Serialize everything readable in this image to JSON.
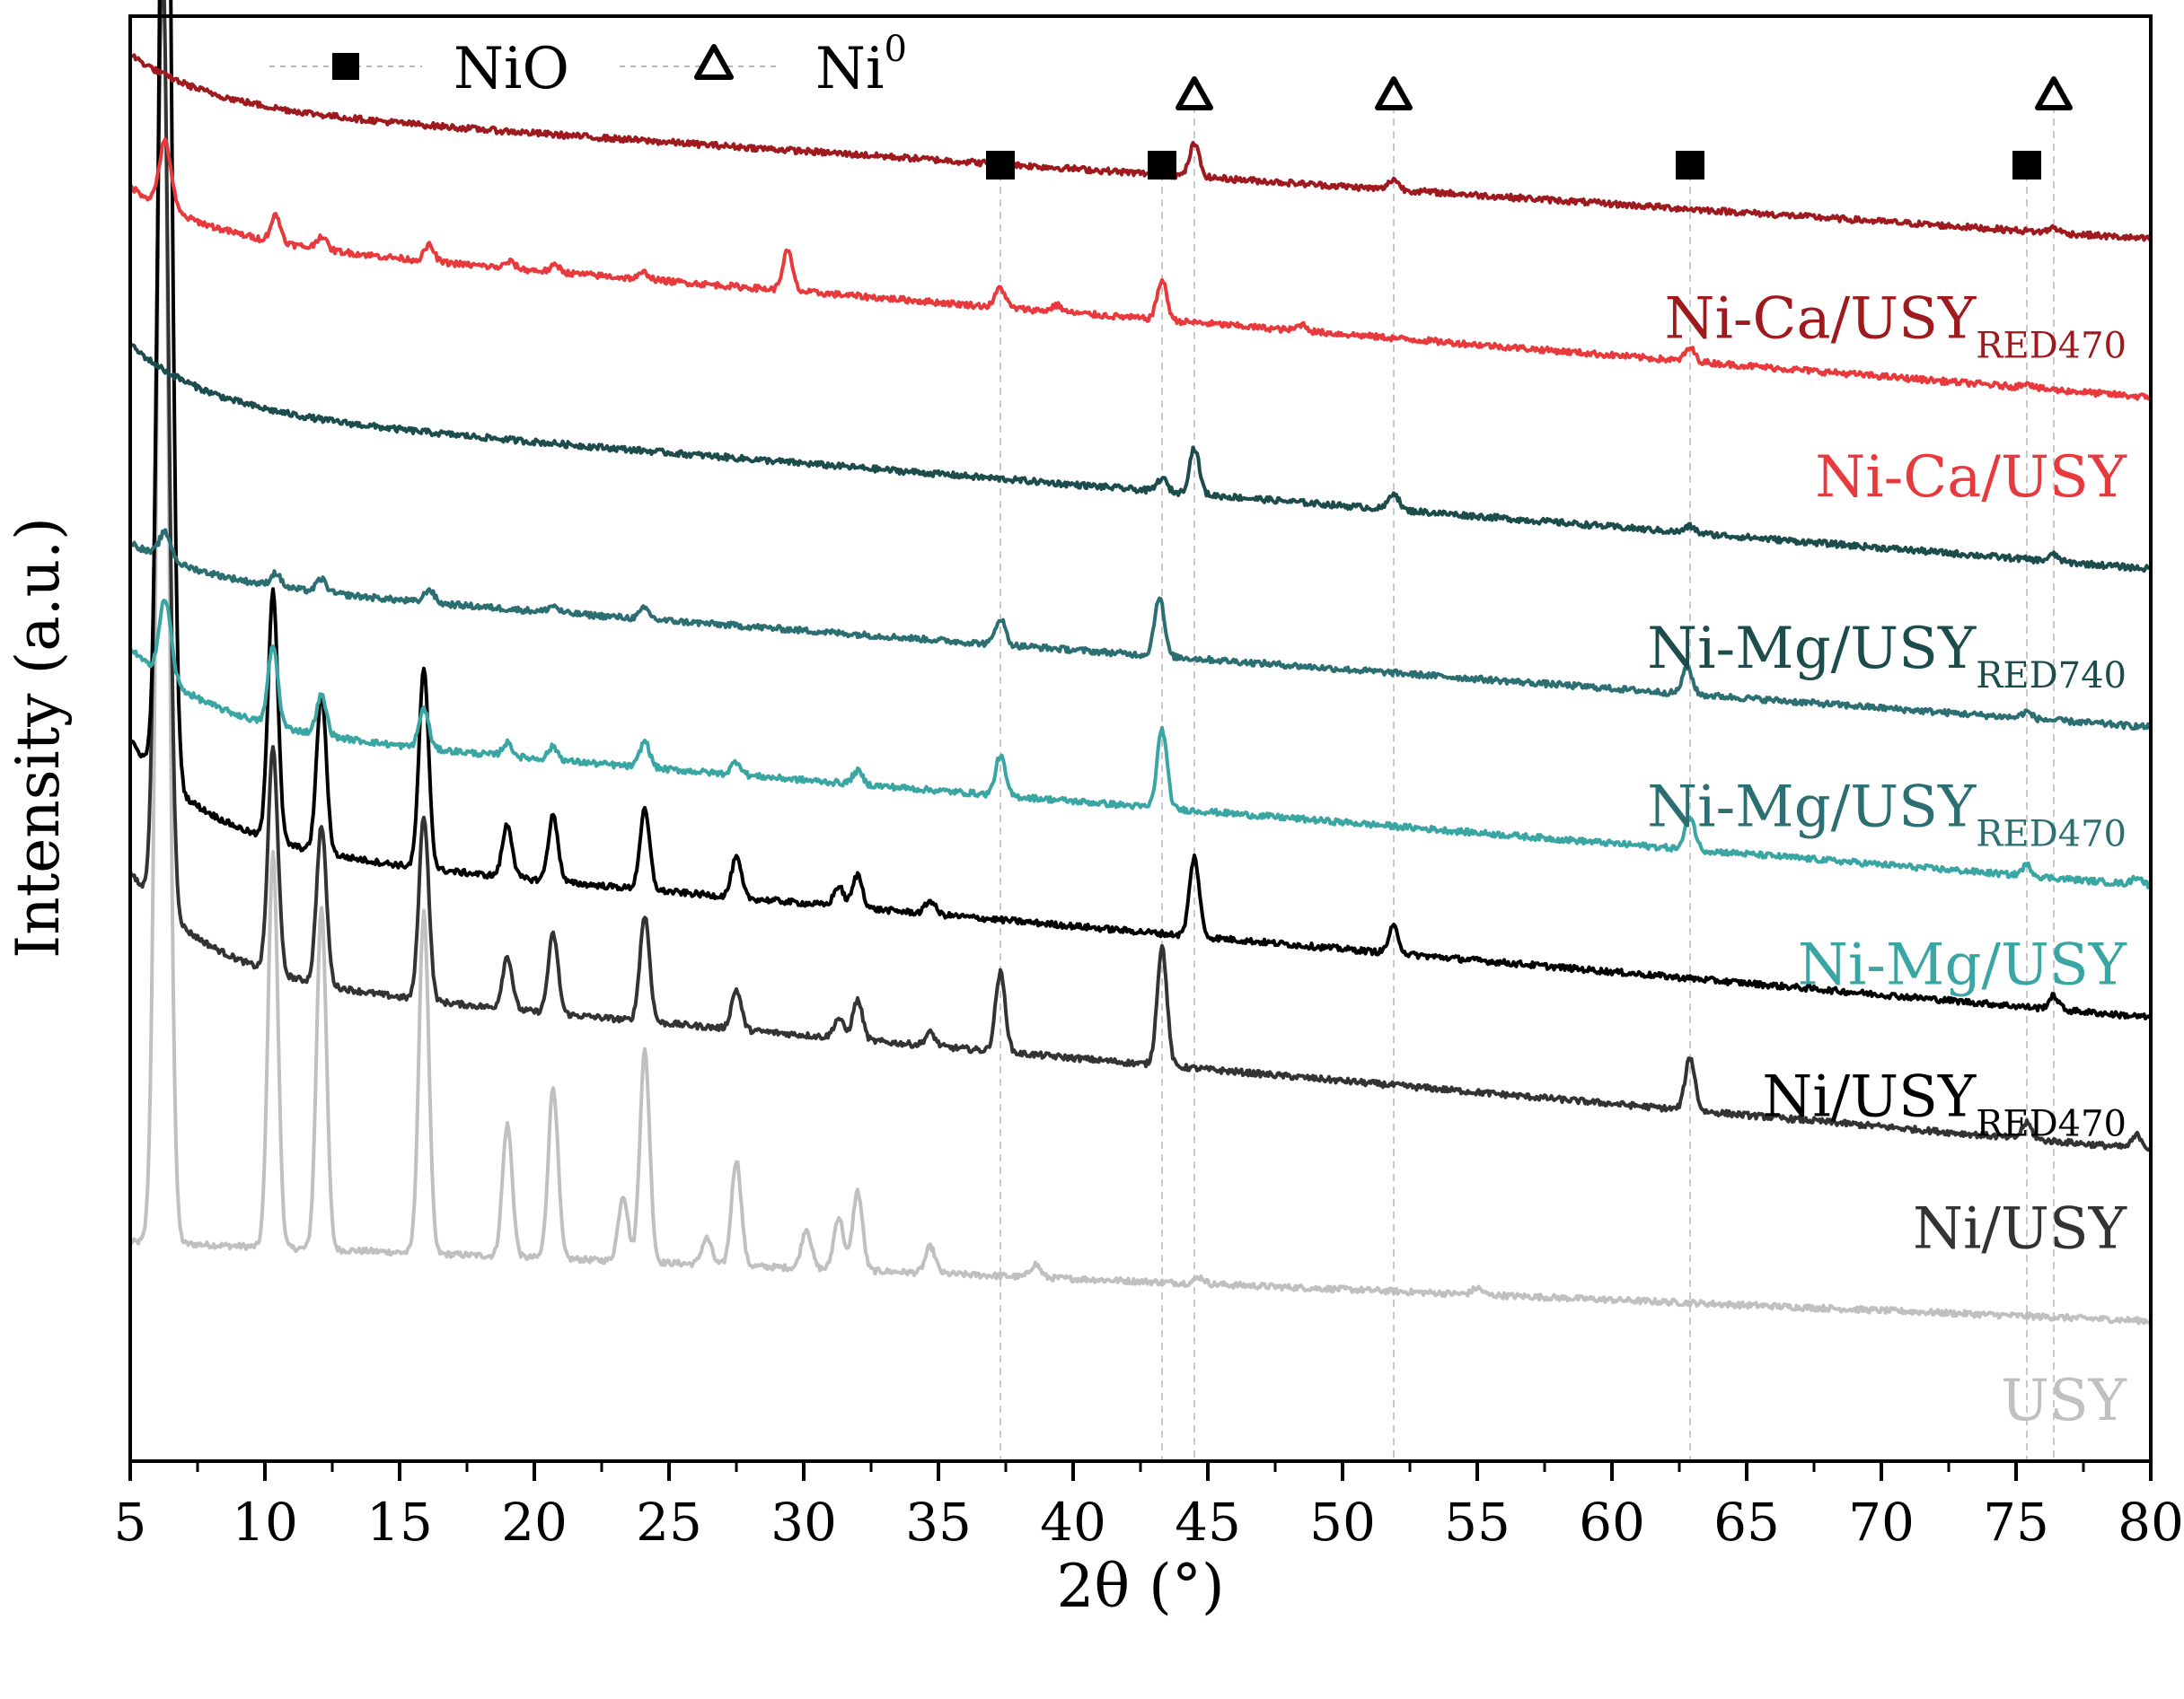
{
  "chart_data": {
    "type": "line",
    "title": "",
    "xlabel": "2θ (°)",
    "ylabel": "Intensity (a.u.)",
    "xlim": [
      5,
      80
    ],
    "x_ticks": [
      "5",
      "10",
      "15",
      "20",
      "25",
      "30",
      "35",
      "40",
      "45",
      "50",
      "55",
      "60",
      "65",
      "70",
      "75",
      "80"
    ],
    "y_ticks_shown": false,
    "legend": {
      "position": "top-left",
      "entries": [
        {
          "label": "NiO",
          "symbol": "filled-square",
          "sup": ""
        },
        {
          "label": "Ni",
          "symbol": "open-triangle",
          "sup": "0"
        }
      ]
    },
    "reference_lines": {
      "NiO": [
        37.3,
        43.3,
        62.9,
        75.4
      ],
      "Ni0": [
        44.5,
        51.9,
        76.4
      ]
    },
    "series": [
      {
        "name": "USY",
        "label_main": "USY",
        "label_sub": "",
        "color": "#c0c0c0",
        "start": 0.12,
        "end": 0.06,
        "decay": 0.0,
        "peaks": [
          [
            6.2,
            1.0
          ],
          [
            10.3,
            0.3
          ],
          [
            12.1,
            0.26
          ],
          [
            15.9,
            0.26
          ],
          [
            19.0,
            0.1
          ],
          [
            20.7,
            0.13
          ],
          [
            23.3,
            0.05
          ],
          [
            24.1,
            0.16
          ],
          [
            26.4,
            0.02
          ],
          [
            27.5,
            0.08
          ],
          [
            30.1,
            0.03
          ],
          [
            31.3,
            0.04
          ],
          [
            32.0,
            0.06
          ],
          [
            34.7,
            0.02
          ],
          [
            38.6,
            0.01
          ],
          [
            44.7,
            0.005
          ],
          [
            55.0,
            0.005
          ]
        ]
      },
      {
        "name": "Ni/USY",
        "label_main": "Ni/USY",
        "label_sub": "",
        "color": "#333333",
        "start": 0.32,
        "end": 0.19,
        "decay": 0.08,
        "peaks": [
          [
            6.2,
            0.72
          ],
          [
            10.3,
            0.17
          ],
          [
            12.1,
            0.12
          ],
          [
            15.9,
            0.14
          ],
          [
            19.0,
            0.04
          ],
          [
            20.7,
            0.06
          ],
          [
            24.1,
            0.08
          ],
          [
            27.5,
            0.03
          ],
          [
            31.3,
            0.015
          ],
          [
            32.0,
            0.03
          ],
          [
            34.7,
            0.01
          ],
          [
            37.3,
            0.06
          ],
          [
            43.3,
            0.09
          ],
          [
            62.9,
            0.04
          ],
          [
            75.4,
            0.012
          ],
          [
            79.5,
            0.01
          ]
        ]
      },
      {
        "name": "Ni/USY_RED470",
        "label_main": "Ni/USY",
        "label_sub": "RED470",
        "color": "#000000",
        "start": 0.42,
        "end": 0.29,
        "decay": 0.08,
        "peaks": [
          [
            6.3,
            0.93
          ],
          [
            10.3,
            0.19
          ],
          [
            12.1,
            0.12
          ],
          [
            15.9,
            0.15
          ],
          [
            19.0,
            0.04
          ],
          [
            20.7,
            0.05
          ],
          [
            24.1,
            0.06
          ],
          [
            27.5,
            0.03
          ],
          [
            31.3,
            0.015
          ],
          [
            32.0,
            0.025
          ],
          [
            34.7,
            0.01
          ],
          [
            44.5,
            0.06
          ],
          [
            51.9,
            0.02
          ],
          [
            76.4,
            0.01
          ]
        ]
      },
      {
        "name": "Ni-Mg/USY",
        "label_main": "Ni-Mg/USY",
        "label_sub": "",
        "color": "#3aa6a4",
        "start": 0.51,
        "end": 0.39,
        "decay": 0.06,
        "peaks": [
          [
            6.3,
            0.06
          ],
          [
            10.3,
            0.06
          ],
          [
            12.1,
            0.03
          ],
          [
            15.9,
            0.03
          ],
          [
            19.0,
            0.01
          ],
          [
            20.7,
            0.01
          ],
          [
            24.1,
            0.02
          ],
          [
            27.5,
            0.01
          ],
          [
            32.0,
            0.01
          ],
          [
            37.3,
            0.03
          ],
          [
            43.3,
            0.06
          ],
          [
            62.9,
            0.025
          ],
          [
            75.4,
            0.008
          ],
          [
            79.5,
            0.006
          ]
        ]
      },
      {
        "name": "Ni-Mg/USY_RED470",
        "label_main": "Ni-Mg/USY",
        "label_sub": "RED470",
        "color": "#2b6f72",
        "start": 0.62,
        "end": 0.51,
        "decay": 0.03,
        "peaks": [
          [
            6.3,
            0.02
          ],
          [
            10.4,
            0.01
          ],
          [
            12.1,
            0.01
          ],
          [
            16.1,
            0.01
          ],
          [
            20.7,
            0.005
          ],
          [
            24.1,
            0.008
          ],
          [
            37.3,
            0.02
          ],
          [
            43.2,
            0.045
          ],
          [
            62.8,
            0.02
          ],
          [
            75.4,
            0.005
          ]
        ]
      },
      {
        "name": "Ni-Mg/USY_RED740",
        "label_main": "Ni-Mg/USY",
        "label_sub": "RED740",
        "color": "#1d4c4d",
        "start": 0.75,
        "end": 0.63,
        "decay": 0.05,
        "peaks": [
          [
            43.3,
            0.01
          ],
          [
            44.5,
            0.035
          ],
          [
            51.9,
            0.013
          ],
          [
            62.9,
            0.005
          ],
          [
            76.4,
            0.005
          ]
        ]
      },
      {
        "name": "Ni-Ca/USY",
        "label_main": "Ni-Ca/USY",
        "label_sub": "",
        "color": "#e8393c",
        "start": 0.88,
        "end": 0.76,
        "decay": 0.04,
        "peaks": [
          [
            6.3,
            0.05
          ],
          [
            10.4,
            0.02
          ],
          [
            12.1,
            0.01
          ],
          [
            16.1,
            0.012
          ],
          [
            19.1,
            0.005
          ],
          [
            20.8,
            0.005
          ],
          [
            24.1,
            0.005
          ],
          [
            29.4,
            0.03
          ],
          [
            37.3,
            0.015
          ],
          [
            39.4,
            0.005
          ],
          [
            43.3,
            0.03
          ],
          [
            48.5,
            0.005
          ],
          [
            62.9,
            0.01
          ],
          [
            75.4,
            0.004
          ]
        ]
      },
      {
        "name": "Ni-Ca/USY_RED470",
        "label_main": "Ni-Ca/USY",
        "label_sub": "RED470",
        "color": "#9e1a1e",
        "start": 0.98,
        "end": 0.88,
        "decay": 0.04,
        "peaks": [
          [
            44.5,
            0.025
          ],
          [
            51.9,
            0.008
          ],
          [
            76.4,
            0.004
          ]
        ]
      }
    ]
  }
}
